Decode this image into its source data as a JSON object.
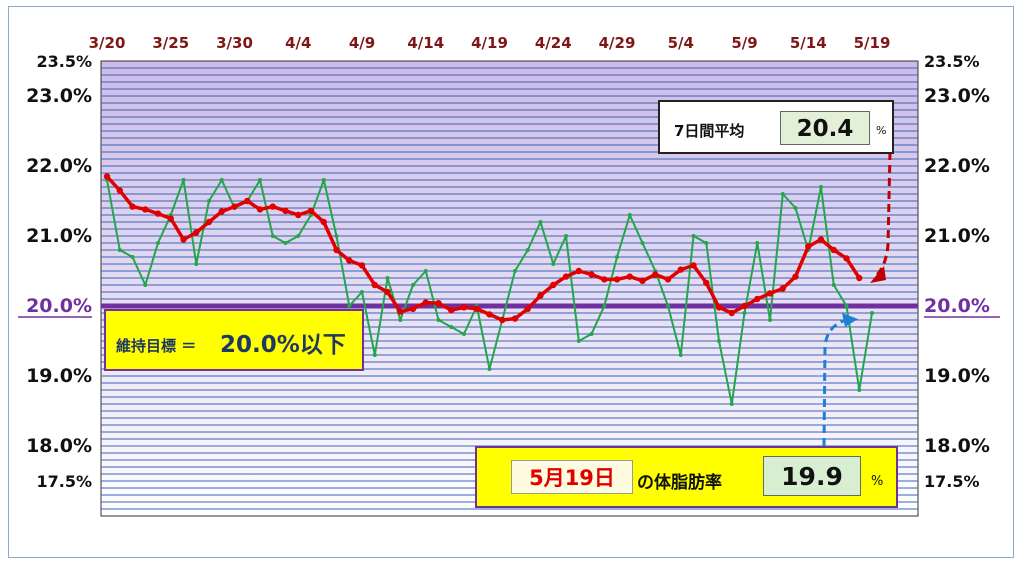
{
  "chart_data": {
    "type": "line",
    "title": "",
    "xlabel": "",
    "ylabel": "",
    "ylim": [
      17.0,
      23.5
    ],
    "x_ticks": [
      "3/20",
      "3/25",
      "3/30",
      "4/4",
      "4/9",
      "4/14",
      "4/19",
      "4/24",
      "4/29",
      "5/4",
      "5/9",
      "5/14",
      "5/19"
    ],
    "y_ticks_left": [
      {
        "value": 23.5,
        "label": "23.5%"
      },
      {
        "value": 23.0,
        "label": "23.0%"
      },
      {
        "value": 22.0,
        "label": "22.0%"
      },
      {
        "value": 21.0,
        "label": "21.0%"
      },
      {
        "value": 20.0,
        "label": "20.0%"
      },
      {
        "value": 19.0,
        "label": "19.0%"
      },
      {
        "value": 18.0,
        "label": "18.0%"
      },
      {
        "value": 17.5,
        "label": "17.5%"
      }
    ],
    "grid": true,
    "target_value": 20.0,
    "series": [
      {
        "name": "",
        "color": "#22a64a",
        "values": [
          21.8,
          20.8,
          20.7,
          20.3,
          20.9,
          21.3,
          21.8,
          20.6,
          21.5,
          21.8,
          21.4,
          21.5,
          21.8,
          21.0,
          20.9,
          21.0,
          21.3,
          21.8,
          21.0,
          20.0,
          20.2,
          19.3,
          20.4,
          19.8,
          20.3,
          20.5,
          19.8,
          19.7,
          19.6,
          20.0,
          19.1,
          19.8,
          20.5,
          20.8,
          21.2,
          20.6,
          21.0,
          19.5,
          19.6,
          20.0,
          20.7,
          21.3,
          20.9,
          20.5,
          20.0,
          19.3,
          21.0,
          20.9,
          19.5,
          18.6,
          19.9,
          20.9,
          19.8,
          21.6,
          21.4,
          20.8,
          21.7,
          20.3,
          20.0,
          18.8,
          19.9
        ]
      },
      {
        "name": "",
        "color": "#e00000",
        "values": [
          21.85,
          21.65,
          21.42,
          21.38,
          21.32,
          21.25,
          20.95,
          21.05,
          21.2,
          21.35,
          21.42,
          21.5,
          21.38,
          21.42,
          21.36,
          21.3,
          21.36,
          21.2,
          20.8,
          20.65,
          20.58,
          20.3,
          20.2,
          19.92,
          19.96,
          20.05,
          20.04,
          19.94,
          19.98,
          19.96,
          19.88,
          19.8,
          19.82,
          19.96,
          20.15,
          20.3,
          20.42,
          20.5,
          20.45,
          20.38,
          20.38,
          20.42,
          20.36,
          20.45,
          20.38,
          20.52,
          20.58,
          20.33,
          19.98,
          19.9,
          20.0,
          20.1,
          20.18,
          20.25,
          20.42,
          20.85,
          20.95,
          20.8,
          20.68,
          20.4
        ]
      }
    ]
  },
  "avg": {
    "label": "7日間平均",
    "value": "20.4",
    "unit": "%"
  },
  "target": {
    "label": "維持目標 ＝",
    "value": "20.0%以下"
  },
  "today": {
    "date": "5月19日",
    "label": "の体脂肪率",
    "value": "19.9",
    "unit": "%"
  },
  "colors": {
    "plot_top": "#cdbbe6",
    "plot_bottom": "#ffffff",
    "gridline": "#3a62b8",
    "target_line": "#7030a0",
    "x_tick_color": "#7f1717",
    "green_line": "#22a64a",
    "red_line": "#e00000",
    "arrow_red": "#c00000",
    "arrow_blue": "#1f7fd4"
  }
}
